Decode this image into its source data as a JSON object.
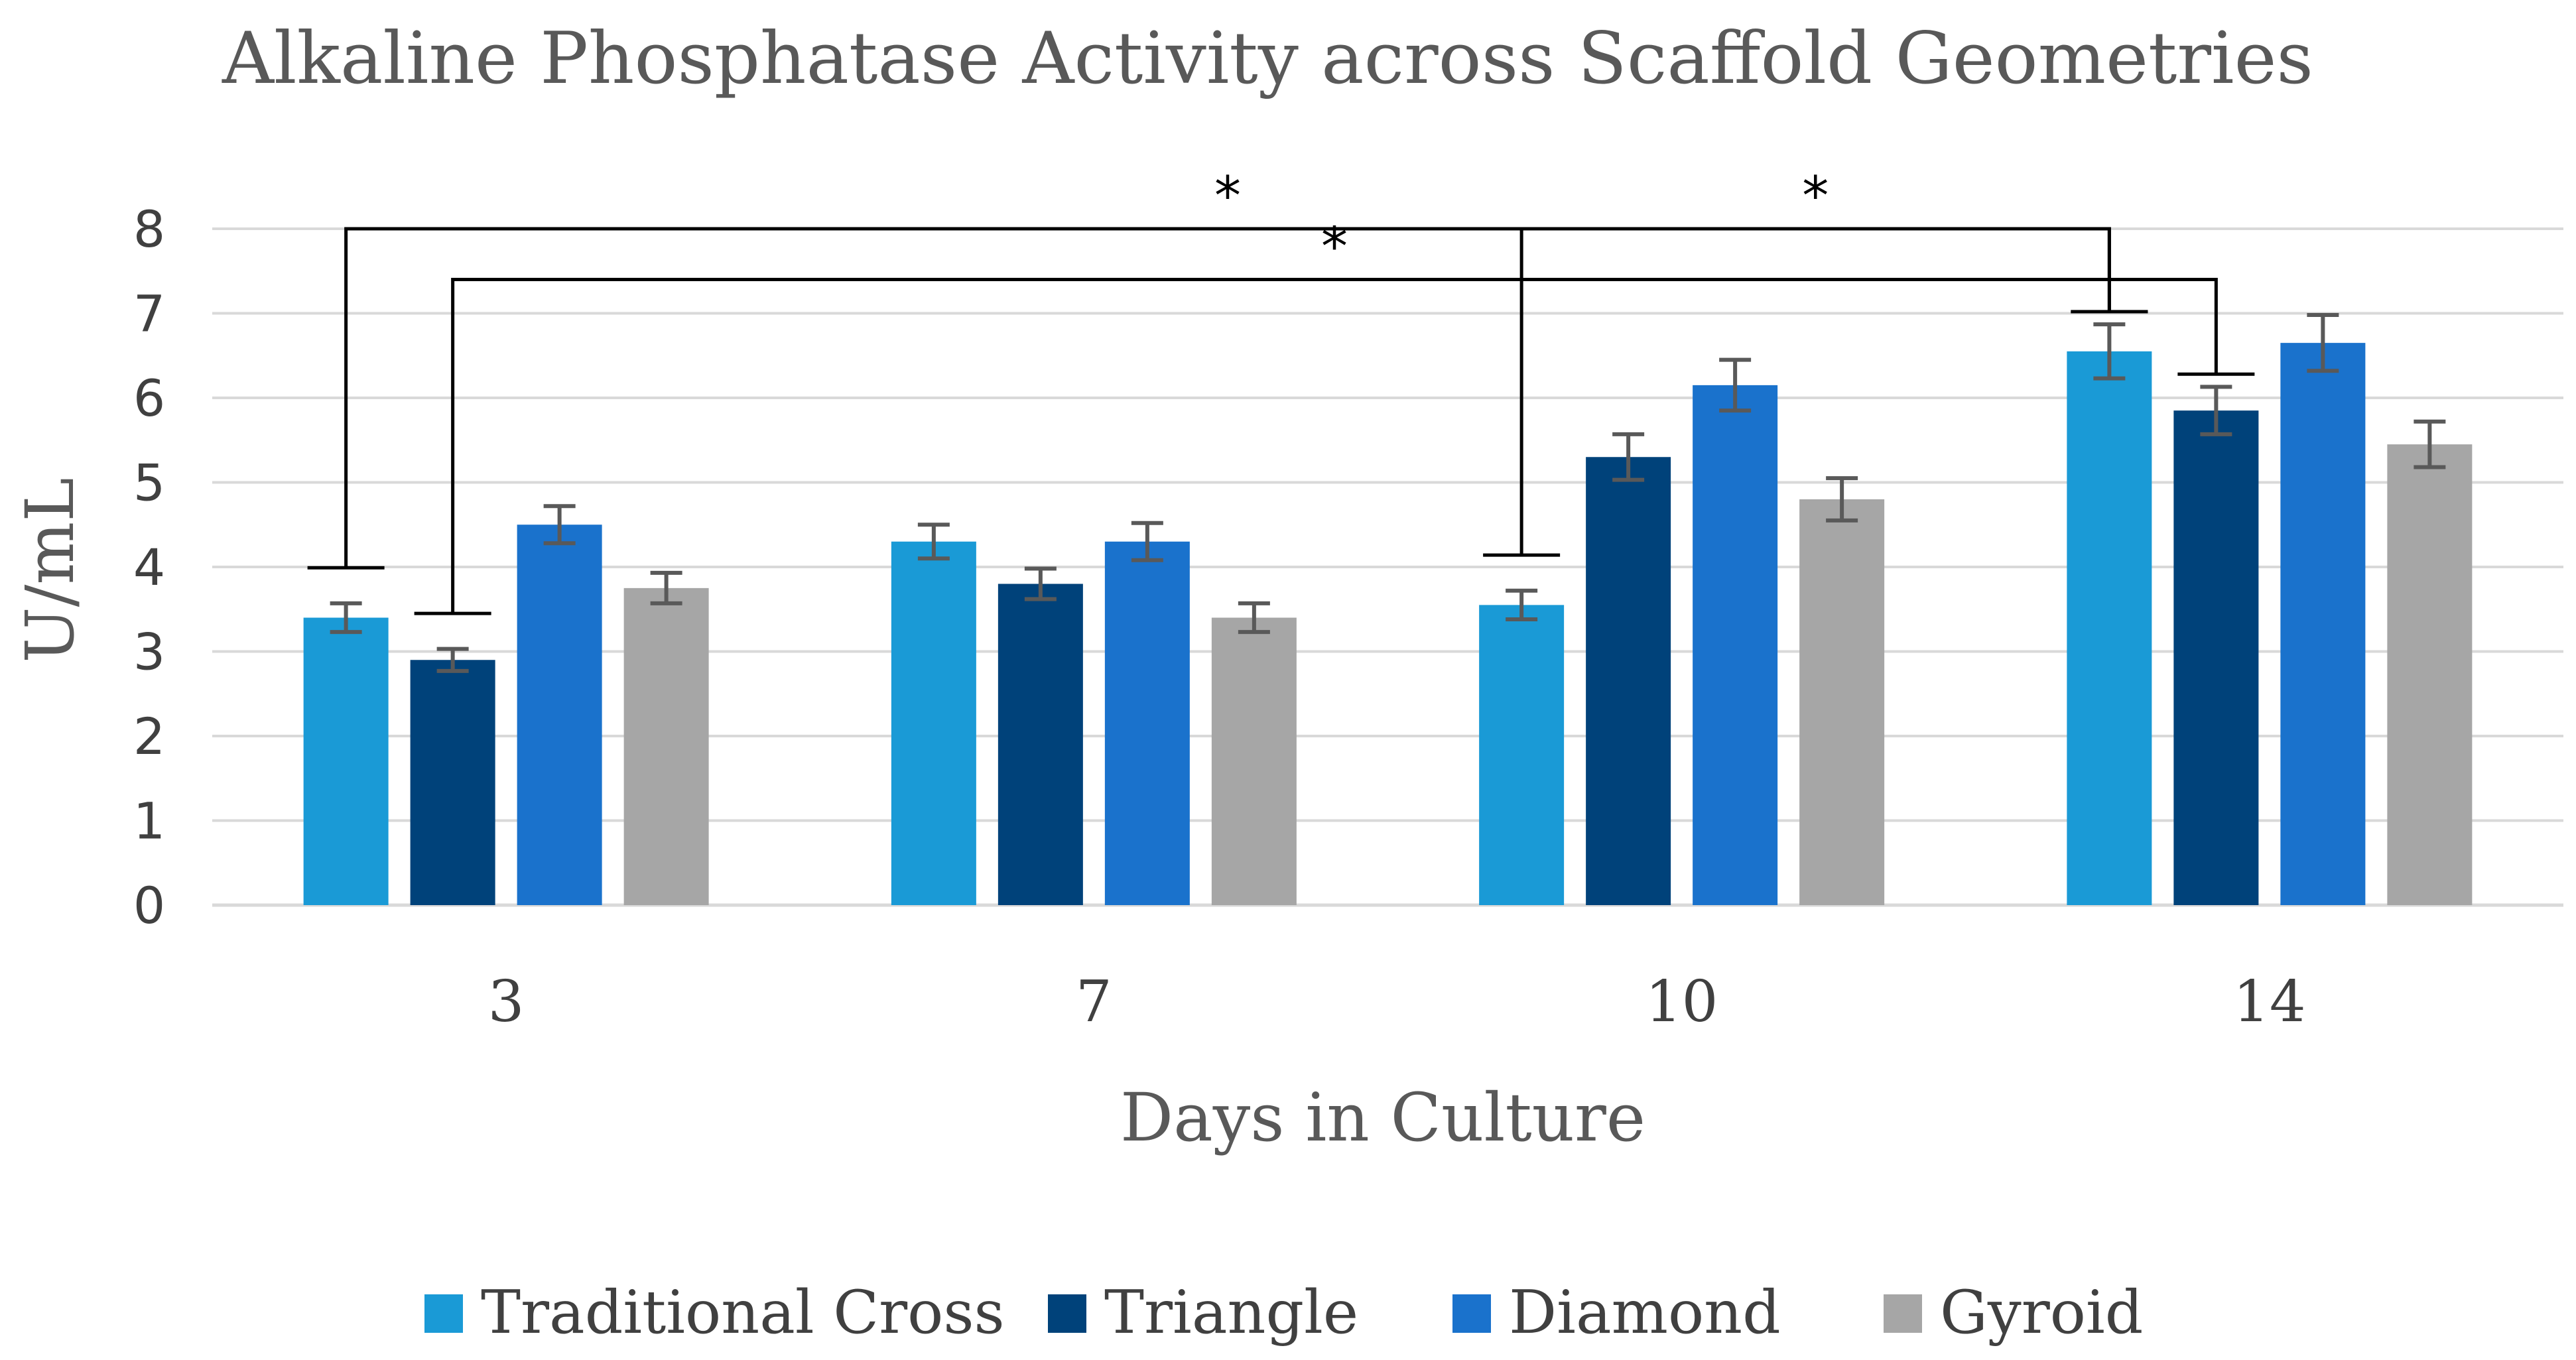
{
  "chart_data": {
    "type": "bar",
    "title": "Alkaline Phosphatase Activity across Scaffold Geometries",
    "xlabel": "Days in Culture",
    "ylabel": "U/mL",
    "ylim": [
      0,
      8
    ],
    "yticks": [
      "0",
      "1",
      "2",
      "3",
      "4",
      "5",
      "6",
      "7",
      "8"
    ],
    "grid": true,
    "legend_position": "bottom",
    "categories": [
      "3",
      "7",
      "10",
      "14"
    ],
    "series": [
      {
        "name": "Traditional Cross",
        "color": "#1a9ad6",
        "values": [
          3.4,
          4.3,
          3.55,
          6.55
        ],
        "errors": [
          0.17,
          0.2,
          0.17,
          0.32
        ]
      },
      {
        "name": "Triangle",
        "color": "#00427a",
        "values": [
          2.9,
          3.8,
          5.3,
          5.85
        ],
        "errors": [
          0.13,
          0.18,
          0.27,
          0.28
        ]
      },
      {
        "name": "Diamond",
        "color": "#1a72cc",
        "values": [
          4.5,
          4.3,
          6.15,
          6.65
        ],
        "errors": [
          0.22,
          0.22,
          0.3,
          0.33
        ]
      },
      {
        "name": "Gyroid",
        "color": "#a6a6a6",
        "values": [
          3.75,
          3.4,
          4.8,
          5.45
        ],
        "errors": [
          0.18,
          0.17,
          0.25,
          0.27
        ]
      }
    ],
    "significance": [
      {
        "from_category": "3",
        "from_series": "Traditional Cross",
        "to_category": "14",
        "to_series": "Traditional Cross",
        "label": "*",
        "level": 8.0
      },
      {
        "from_category": "3",
        "from_series": "Triangle",
        "to_category": "14",
        "to_series": "Triangle",
        "label": "*",
        "level": 7.4
      },
      {
        "from_category": "10",
        "from_series": "Traditional Cross",
        "to_category": "14",
        "to_series": "Traditional Cross",
        "label": "*",
        "level": 8.0
      }
    ]
  }
}
